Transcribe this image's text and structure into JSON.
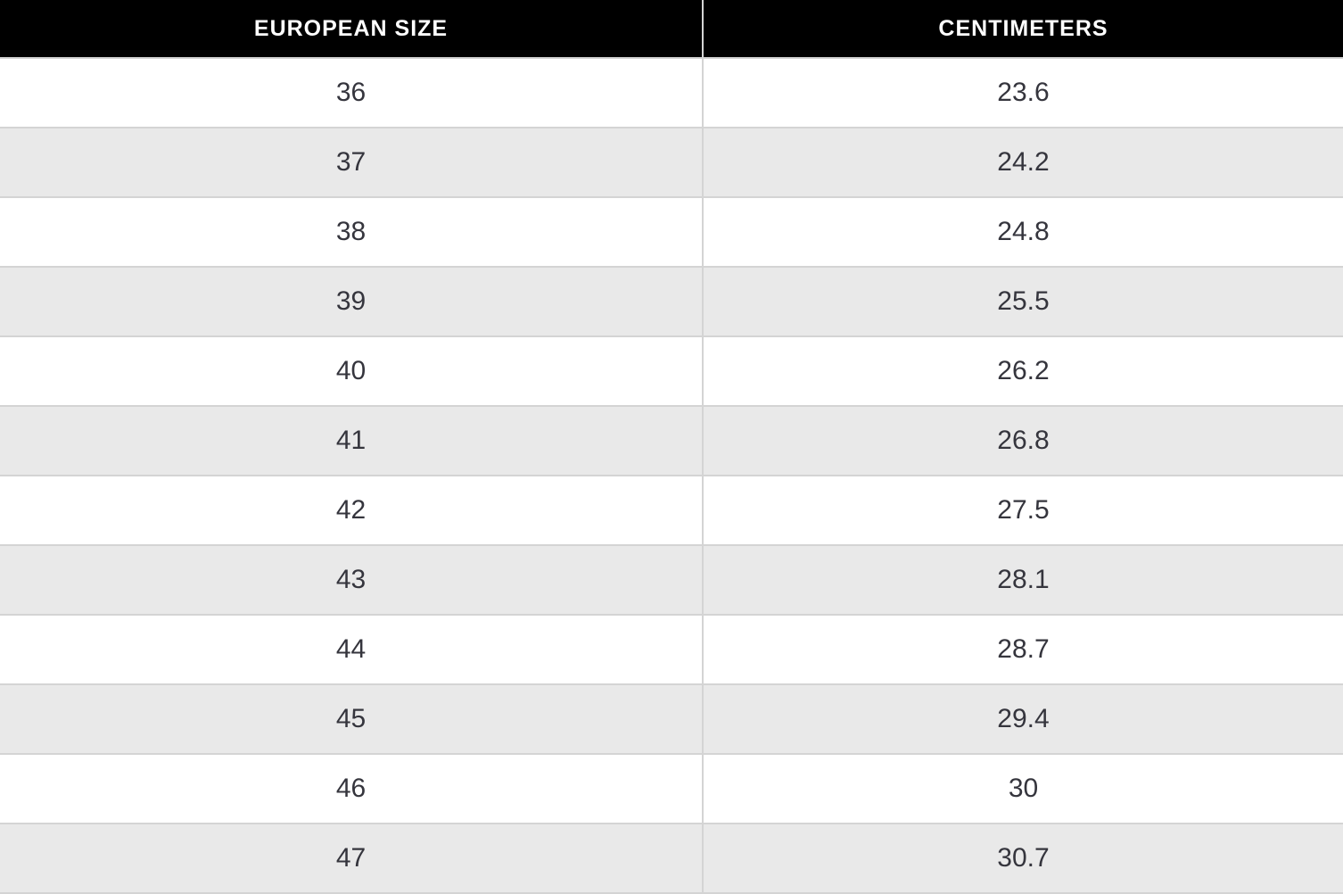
{
  "colors": {
    "header_bg": "#000000",
    "header_text": "#ffffff",
    "row_bg": "#ffffff",
    "row_alt_bg": "#e9e9e9",
    "border": "#d4d4d4",
    "cell_text": "#35353d"
  },
  "chart_data": {
    "type": "table",
    "title": "",
    "columns": [
      "EUROPEAN SIZE",
      "CENTIMETERS"
    ],
    "rows": [
      [
        "36",
        "23.6"
      ],
      [
        "37",
        "24.2"
      ],
      [
        "38",
        "24.8"
      ],
      [
        "39",
        "25.5"
      ],
      [
        "40",
        "26.2"
      ],
      [
        "41",
        "26.8"
      ],
      [
        "42",
        "27.5"
      ],
      [
        "43",
        "28.1"
      ],
      [
        "44",
        "28.7"
      ],
      [
        "45",
        "29.4"
      ],
      [
        "46",
        "30"
      ],
      [
        "47",
        "30.7"
      ]
    ]
  }
}
